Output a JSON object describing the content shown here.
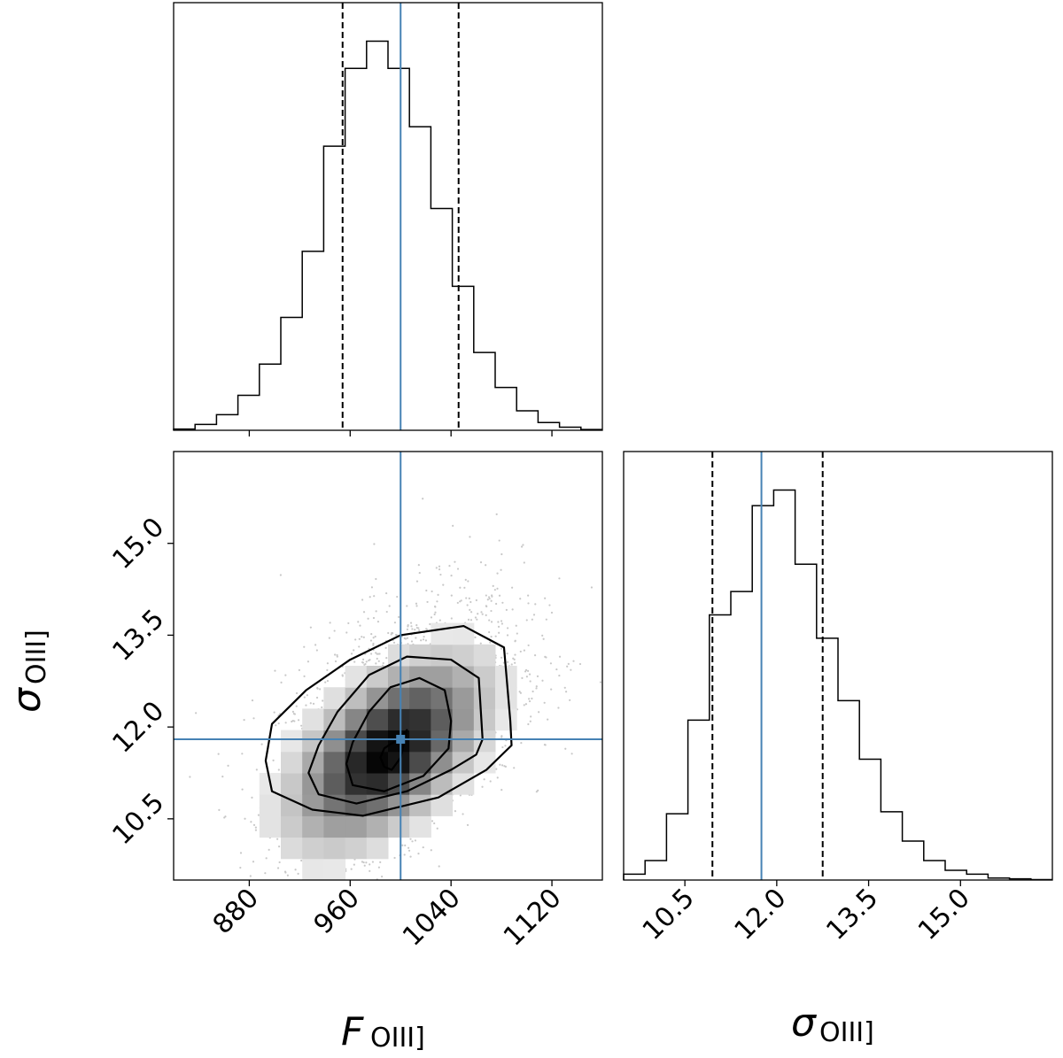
{
  "chart_data": [
    {
      "type": "histogram",
      "panel": "top-left",
      "variable": "F_OIII]",
      "xlim": [
        820,
        1160
      ],
      "bins": [
        820,
        837,
        854,
        871,
        888,
        905,
        922,
        939,
        956,
        973,
        990,
        1007,
        1024,
        1041,
        1058,
        1075,
        1092,
        1109,
        1126,
        1143,
        1160
      ],
      "counts": [
        0.3,
        1.5,
        4.0,
        9.0,
        17.0,
        29.0,
        46.0,
        73.0,
        93.0,
        100.0,
        93.0,
        78.0,
        57.0,
        37.0,
        20.0,
        11.0,
        5.0,
        2.0,
        0.8,
        0.2
      ],
      "median": 1000,
      "quantile_16": 954,
      "quantile_84": 1046,
      "x_ticks": [
        "880",
        "960",
        "1040",
        "1120"
      ],
      "x_tick_values": [
        880,
        960,
        1040,
        1120
      ],
      "x_tick_labels_visible": false
    },
    {
      "type": "heatmap",
      "panel": "bottom-left",
      "xlabel": "F_OIII]",
      "ylabel": "σ_OIII]",
      "xlim": [
        820,
        1160
      ],
      "ylim": [
        9.5,
        16.5
      ],
      "x_ticks": [
        "880",
        "960",
        "1040",
        "1120"
      ],
      "x_tick_values": [
        880,
        960,
        1040,
        1120
      ],
      "y_ticks": [
        "10.5",
        "12.0",
        "13.5",
        "15.0"
      ],
      "y_tick_values": [
        10.5,
        12.0,
        13.5,
        15.0
      ],
      "truth": [
        1000,
        11.8
      ],
      "contours": [
        {
          "level": 1,
          "points": [
            [
              1005,
              11.95
            ],
            [
              1000,
              11.5
            ],
            [
              993,
              11.3
            ],
            [
              987,
              11.35
            ],
            [
              984,
              11.5
            ],
            [
              987,
              11.65
            ],
            [
              998,
              11.8
            ]
          ]
        },
        {
          "level": 2,
          "points": [
            [
              1040,
              12.1
            ],
            [
              1035,
              12.6
            ],
            [
              1015,
              12.8
            ],
            [
              992,
              12.65
            ],
            [
              975,
              12.25
            ],
            [
              962,
              11.75
            ],
            [
              957,
              11.4
            ],
            [
              962,
              11.05
            ],
            [
              987,
              10.95
            ],
            [
              1018,
              11.2
            ],
            [
              1038,
              11.65
            ]
          ]
        },
        {
          "level": 3,
          "points": [
            [
              1065,
              11.8
            ],
            [
              1062,
              12.8
            ],
            [
              1040,
              13.1
            ],
            [
              1005,
              13.15
            ],
            [
              975,
              12.85
            ],
            [
              950,
              12.25
            ],
            [
              935,
              11.7
            ],
            [
              927,
              11.25
            ],
            [
              935,
              10.9
            ],
            [
              965,
              10.75
            ],
            [
              1005,
              10.95
            ],
            [
              1040,
              11.3
            ],
            [
              1060,
              11.55
            ]
          ]
        },
        {
          "level": 4,
          "points": [
            [
              1087,
              12.1
            ],
            [
              1082,
              13.3
            ],
            [
              1050,
              13.65
            ],
            [
              1000,
              13.5
            ],
            [
              960,
              13.1
            ],
            [
              925,
              12.6
            ],
            [
              898,
              12.05
            ],
            [
              893,
              11.45
            ],
            [
              898,
              10.95
            ],
            [
              930,
              10.65
            ],
            [
              970,
              10.55
            ],
            [
              1030,
              10.85
            ],
            [
              1068,
              11.3
            ],
            [
              1088,
              11.7
            ]
          ]
        }
      ]
    },
    {
      "type": "histogram",
      "panel": "bottom-right",
      "variable": "σ_OIII]",
      "xlabel": "σ_OIII]",
      "xlim": [
        9.5,
        16.5
      ],
      "bins": [
        9.5,
        9.85,
        10.2,
        10.55,
        10.9,
        11.25,
        11.6,
        11.95,
        12.3,
        12.65,
        13.0,
        13.35,
        13.7,
        14.05,
        14.4,
        14.75,
        15.1,
        15.45,
        15.8,
        16.15,
        16.5
      ],
      "counts": [
        1.5,
        5.0,
        17.0,
        41.0,
        68.0,
        74.0,
        96.0,
        100.0,
        81.0,
        62.0,
        46.0,
        31.0,
        17.5,
        10.0,
        5.0,
        2.5,
        1.5,
        0.5,
        0.3,
        0.1
      ],
      "median": 11.75,
      "quantile_16": 10.95,
      "quantile_84": 12.75,
      "x_ticks": [
        "10.5",
        "12.0",
        "13.5",
        "15.0"
      ],
      "x_tick_values": [
        10.5,
        12.0,
        13.5,
        15.0
      ]
    }
  ],
  "axis_labels": {
    "f_symbol": "F",
    "sigma_symbol": "σ",
    "subscript": "OIII]"
  },
  "colors": {
    "truth": "#4682b4",
    "line": "#000000",
    "background": "#ffffff"
  }
}
